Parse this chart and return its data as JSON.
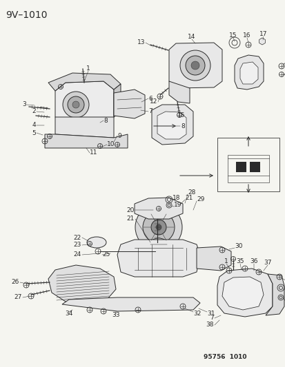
{
  "title": "9V–1010",
  "footer": "95756  1010",
  "bg_color": "#f5f5f0",
  "title_fontsize": 10,
  "footer_fontsize": 6.5,
  "line_color": "#2a2a2a",
  "lw": 0.7
}
